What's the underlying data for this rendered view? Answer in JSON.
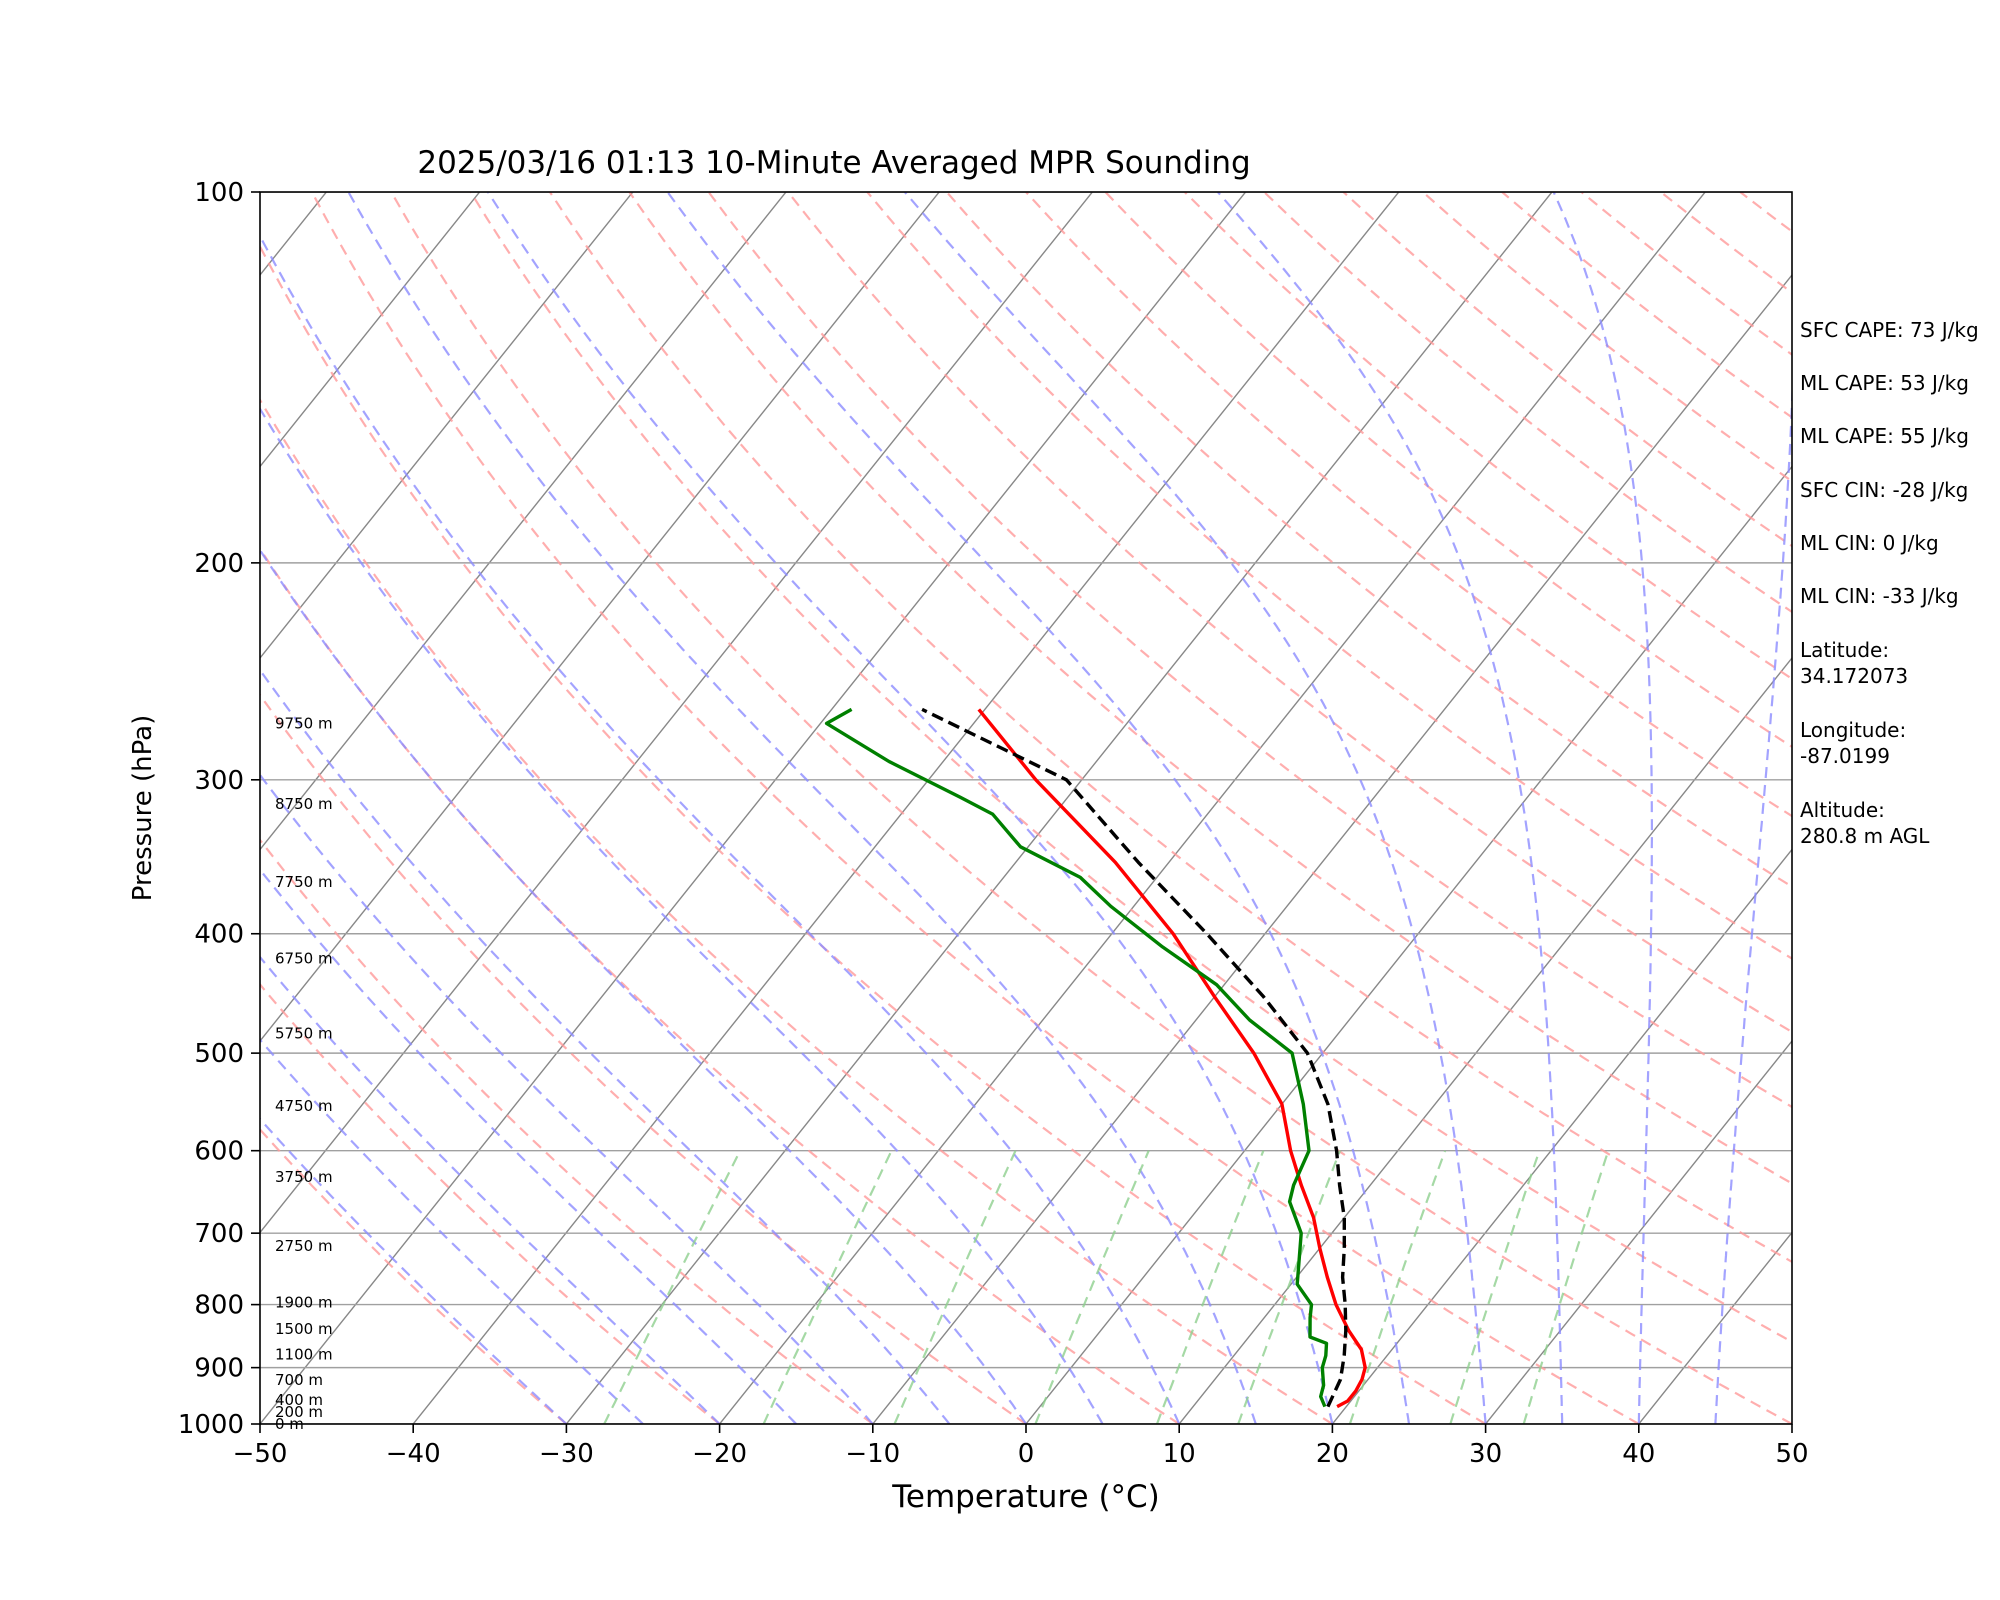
{
  "chart_data": {
    "type": "line",
    "title": "2025/03/16 01:13 10-Minute Averaged MPR Sounding",
    "xlabel": "Temperature (°C)",
    "ylabel": "Pressure (hPa)",
    "xlim": [
      -50,
      50
    ],
    "ylim": [
      1000,
      100
    ],
    "y_scale": "log",
    "skew": "skew-T",
    "grid": true,
    "x_ticks": [
      "−50",
      "−40",
      "−30",
      "−20",
      "−10",
      "0",
      "10",
      "20",
      "30",
      "40",
      "50"
    ],
    "x_tick_values": [
      -50,
      -40,
      -30,
      -20,
      -10,
      0,
      10,
      20,
      30,
      40,
      50
    ],
    "y_ticks": [
      "100",
      "200",
      "300",
      "400",
      "500",
      "600",
      "700",
      "800",
      "900",
      "1000"
    ],
    "y_tick_values": [
      100,
      200,
      300,
      400,
      500,
      600,
      700,
      800,
      900,
      1000
    ],
    "height_labels": [
      {
        "text": "0 m",
        "p": 1000
      },
      {
        "text": "200 m",
        "p": 978
      },
      {
        "text": "400 m",
        "p": 956
      },
      {
        "text": "700 m",
        "p": 921
      },
      {
        "text": "1100 m",
        "p": 878
      },
      {
        "text": "1500 m",
        "p": 837
      },
      {
        "text": "1900 m",
        "p": 797
      },
      {
        "text": "2750 m",
        "p": 717
      },
      {
        "text": "3750 m",
        "p": 630
      },
      {
        "text": "4750 m",
        "p": 552
      },
      {
        "text": "5750 m",
        "p": 482
      },
      {
        "text": "6750 m",
        "p": 419
      },
      {
        "text": "7750 m",
        "p": 363
      },
      {
        "text": "8750 m",
        "p": 314
      },
      {
        "text": "9750 m",
        "p": 270
      }
    ],
    "series": [
      {
        "color": "#ff0000",
        "style": "solid",
        "p": [
          968,
          958,
          940,
          920,
          900,
          870,
          840,
          800,
          760,
          720,
          680,
          640,
          600,
          550,
          500,
          450,
          400,
          350,
          300,
          263
        ],
        "temp": [
          19.4,
          19.8,
          19.8,
          19.6,
          19.2,
          18.0,
          16.2,
          14.0,
          12.0,
          10.0,
          8.0,
          5.5,
          3.0,
          0.0,
          -4.5,
          -10.0,
          -16.0,
          -23.5,
          -33.0,
          -40.4
        ]
      },
      {
        "color": "#008000",
        "style": "solid",
        "p": [
          968,
          950,
          930,
          900,
          880,
          860,
          850,
          820,
          800,
          770,
          740,
          700,
          660,
          640,
          600,
          550,
          500,
          470,
          440,
          410,
          380,
          360,
          340,
          320,
          310,
          290,
          270,
          263
        ],
        "temp": [
          18.6,
          17.8,
          17.4,
          16.4,
          16.0,
          15.4,
          14.0,
          13.0,
          12.4,
          10.4,
          9.4,
          8.0,
          5.6,
          5.0,
          4.2,
          1.4,
          -2.0,
          -6.5,
          -10.5,
          -16.0,
          -21.5,
          -25.0,
          -30.5,
          -34.0,
          -37.0,
          -43.5,
          -49.6,
          -48.7
        ]
      },
      {
        "color": "#000000",
        "style": "dashed",
        "p": [
          968,
          920,
          880,
          840,
          800,
          760,
          720,
          680,
          640,
          600,
          550,
          500,
          450,
          400,
          350,
          300,
          263
        ],
        "temp": [
          18.8,
          18.2,
          17.2,
          16.0,
          14.6,
          13.0,
          11.6,
          10.0,
          8.0,
          6.0,
          3.0,
          -1.0,
          -6.8,
          -13.8,
          -22.0,
          -31.0,
          -44.1
        ]
      }
    ]
  },
  "stats": [
    "SFC CAPE: 73 J/kg",
    "ML CAPE: 53 J/kg",
    "ML CAPE: 55 J/kg",
    "SFC CIN: -28 J/kg",
    "ML CIN: 0 J/kg",
    "ML CIN: -33 J/kg"
  ],
  "location": {
    "latitude_label": "Latitude:",
    "latitude_value": "34.172073",
    "longitude_label": "Longitude:",
    "longitude_value": "-87.0199",
    "altitude_label": "Altitude:",
    "altitude_value": "280.8 m AGL"
  },
  "colors": {
    "temperature": "#ff0000",
    "dewpoint": "#008000",
    "parcel": "#000000",
    "dry_adiabats": "#ff9a9a",
    "moist_adiabats": "#8c8cff",
    "mixing_ratio": "#8fd08f",
    "isotherms": "#888888"
  }
}
